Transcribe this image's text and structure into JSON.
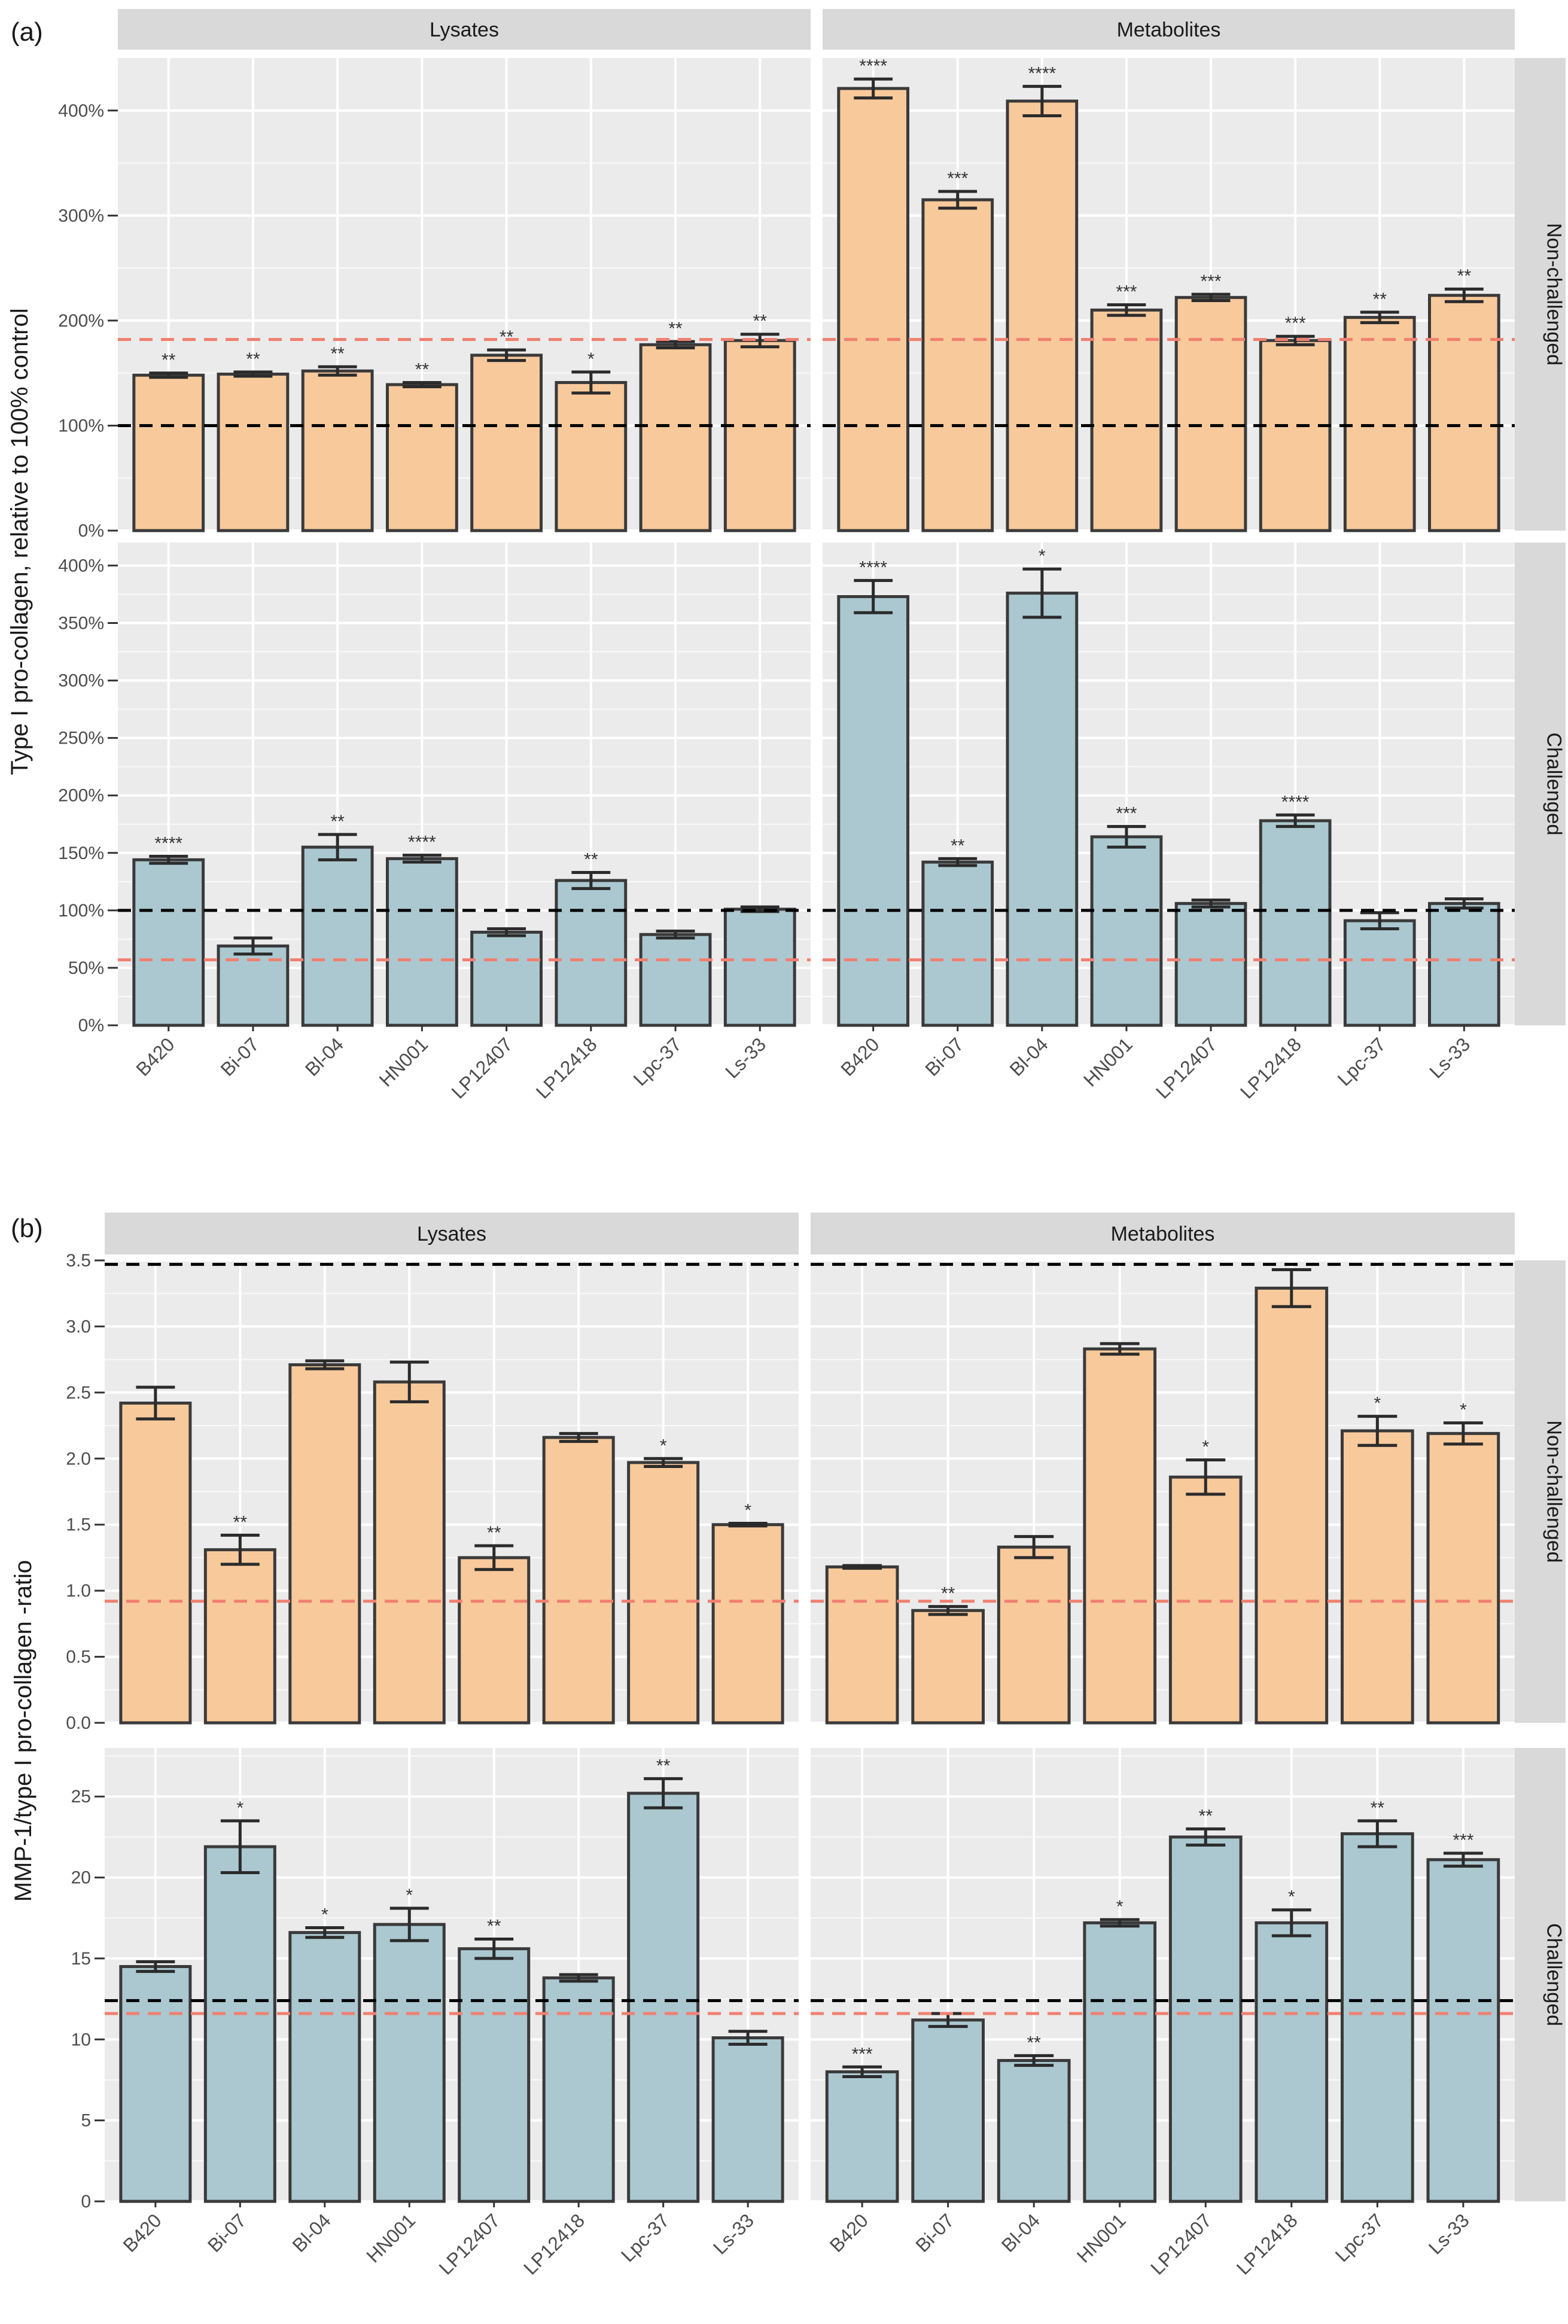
{
  "figure": {
    "colors": {
      "non_challenged": "#F8C99B",
      "challenged": "#ABC8D0",
      "bar_border": "#3a3a3a",
      "panel_bg": "#EBEBEB",
      "grid": "#FFFFFF",
      "strip_bg": "#D9D9D9",
      "black_line": "#000000",
      "red_line": "#F08070"
    }
  },
  "chart_data": [
    {
      "panel_label": "(a)",
      "type": "bar",
      "ylabel": "Type I pro-collagen, relative to 100% control",
      "facet_columns": [
        "Lysates",
        "Metabolites"
      ],
      "categories": [
        "B420",
        "Bi-07",
        "Bl-04",
        "HN001",
        "LP12407",
        "LP12418",
        "Lpc-37",
        "Ls-33"
      ],
      "rows": [
        {
          "name": "Non-challenged",
          "color_key": "non_challenged",
          "ylim": [
            0,
            450
          ],
          "ticks": [
            0,
            100,
            200,
            300,
            400
          ],
          "tick_labels": [
            "0%",
            "100%",
            "200%",
            "300%",
            "400%"
          ],
          "ref_black": 100,
          "ref_red": 182,
          "series": [
            {
              "name": "Lysates",
              "values": [
                148,
                149,
                152,
                139,
                167,
                141,
                177,
                181
              ],
              "errors": [
                2,
                2,
                4,
                2,
                5,
                10,
                3,
                6
              ],
              "sig": [
                "**",
                "**",
                "**",
                "**",
                "**",
                "*",
                "**",
                "**"
              ]
            },
            {
              "name": "Metabolites",
              "values": [
                421,
                315,
                409,
                210,
                222,
                181,
                203,
                224
              ],
              "errors": [
                9,
                8,
                14,
                5,
                3,
                4,
                5,
                6
              ],
              "sig": [
                "****",
                "***",
                "****",
                "***",
                "***",
                "***",
                "**",
                "**"
              ]
            }
          ]
        },
        {
          "name": "Challenged",
          "color_key": "challenged",
          "ylim": [
            0,
            420
          ],
          "ticks": [
            0,
            50,
            100,
            150,
            200,
            250,
            300,
            350,
            400
          ],
          "tick_labels": [
            "0%",
            "50%",
            "100%",
            "150%",
            "200%",
            "250%",
            "300%",
            "350%",
            "400%"
          ],
          "ref_black": 100,
          "ref_red": 57,
          "series": [
            {
              "name": "Lysates",
              "values": [
                144,
                69,
                155,
                145,
                81,
                126,
                79,
                101
              ],
              "errors": [
                3,
                7,
                11,
                3,
                3,
                7,
                3,
                2
              ],
              "sig": [
                "****",
                "",
                "**",
                "****",
                "",
                "**",
                "",
                ""
              ]
            },
            {
              "name": "Metabolites",
              "values": [
                373,
                142,
                376,
                164,
                106,
                178,
                91,
                106
              ],
              "errors": [
                14,
                3,
                21,
                9,
                3,
                5,
                7,
                4
              ],
              "sig": [
                "****",
                "**",
                "*",
                "***",
                "",
                "****",
                "",
                ""
              ]
            }
          ]
        }
      ]
    },
    {
      "panel_label": "(b)",
      "type": "bar",
      "ylabel": "MMP-1/type I pro-collagen -ratio",
      "facet_columns": [
        "Lysates",
        "Metabolites"
      ],
      "categories": [
        "B420",
        "Bi-07",
        "Bl-04",
        "HN001",
        "LP12407",
        "LP12418",
        "Lpc-37",
        "Ls-33"
      ],
      "rows": [
        {
          "name": "Non-challenged",
          "color_key": "non_challenged",
          "ylim": [
            0,
            3.5
          ],
          "ticks": [
            0,
            0.5,
            1,
            1.5,
            2,
            2.5,
            3,
            3.5
          ],
          "tick_labels": [
            "0.0",
            "0.5",
            "1.0",
            "1.5",
            "2.0",
            "2.5",
            "3.0",
            "3.5"
          ],
          "ref_black": 3.47,
          "ref_red": 0.92,
          "series": [
            {
              "name": "Lysates",
              "values": [
                2.42,
                1.31,
                2.71,
                2.58,
                1.25,
                2.16,
                1.97,
                1.5
              ],
              "errors": [
                0.12,
                0.11,
                0.03,
                0.15,
                0.09,
                0.03,
                0.03,
                0.01
              ],
              "sig": [
                "",
                "**",
                "",
                "",
                "**",
                "",
                "*",
                "*"
              ]
            },
            {
              "name": "Metabolites",
              "values": [
                1.18,
                0.85,
                1.33,
                2.83,
                1.86,
                3.29,
                2.21,
                2.19
              ],
              "errors": [
                0.01,
                0.03,
                0.08,
                0.04,
                0.13,
                0.14,
                0.11,
                0.08
              ],
              "sig": [
                "",
                "**",
                "",
                "",
                "*",
                "",
                "*",
                "*"
              ]
            }
          ]
        },
        {
          "name": "Challenged",
          "color_key": "challenged",
          "ylim": [
            0,
            28
          ],
          "ticks": [
            0,
            5,
            10,
            15,
            20,
            25
          ],
          "tick_labels": [
            "0",
            "5",
            "10",
            "15",
            "20",
            "25"
          ],
          "ref_black": 12.4,
          "ref_red": 11.6,
          "series": [
            {
              "name": "Lysates",
              "values": [
                14.5,
                21.9,
                16.6,
                17.1,
                15.6,
                13.8,
                25.2,
                10.1
              ],
              "errors": [
                0.3,
                1.6,
                0.3,
                1.0,
                0.6,
                0.2,
                0.9,
                0.4
              ],
              "sig": [
                "",
                "*",
                "*",
                "*",
                "**",
                "",
                "**",
                ""
              ]
            },
            {
              "name": "Metabolites",
              "values": [
                8.0,
                11.2,
                8.7,
                17.2,
                22.5,
                17.2,
                22.7,
                21.1
              ],
              "errors": [
                0.3,
                0.4,
                0.3,
                0.2,
                0.5,
                0.8,
                0.8,
                0.4
              ],
              "sig": [
                "***",
                "",
                "**",
                "*",
                "**",
                "*",
                "**",
                "***"
              ]
            }
          ]
        }
      ]
    }
  ]
}
